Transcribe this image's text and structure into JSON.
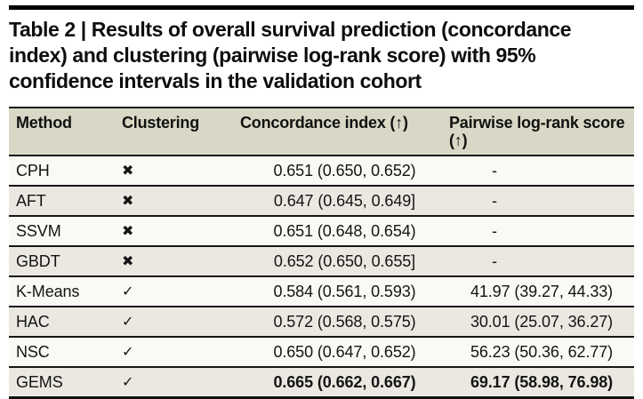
{
  "title": {
    "line1": "Table 2 | Results of overall survival prediction (concordance",
    "line2": "index) and clustering (pairwise log-rank score) with 95%",
    "line3": "confidence intervals in the validation cohort"
  },
  "table": {
    "columns": [
      {
        "label": "Method"
      },
      {
        "label": "Clustering"
      },
      {
        "label": "Concordance index (↑)"
      },
      {
        "label": "Pairwise log-rank score (↑)"
      }
    ],
    "icons": {
      "clustering_no": "✖",
      "clustering_yes": "✓"
    },
    "rows": [
      {
        "method": "CPH",
        "clustering_mark": "✖",
        "concordance": "0.651 (0.650, 0.652)",
        "logrank": "-"
      },
      {
        "method": "AFT",
        "clustering_mark": "✖",
        "concordance": "0.647 (0.645, 0.649]",
        "logrank": "-"
      },
      {
        "method": "SSVM",
        "clustering_mark": "✖",
        "concordance": "0.651 (0.648, 0.654)",
        "logrank": "-"
      },
      {
        "method": "GBDT",
        "clustering_mark": "✖",
        "concordance": "0.652 (0.650, 0.655]",
        "logrank": "-"
      },
      {
        "method": "K-Means",
        "clustering_mark": "✓",
        "concordance": "0.584 (0.561, 0.593)",
        "logrank": "41.97 (39.27, 44.33)"
      },
      {
        "method": "HAC",
        "clustering_mark": "✓",
        "concordance": "0.572 (0.568, 0.575)",
        "logrank": "30.01 (25.07, 36.27)"
      },
      {
        "method": "NSC",
        "clustering_mark": "✓",
        "concordance": "0.650 (0.647, 0.652)",
        "logrank": "56.23 (50.36, 62.77)"
      },
      {
        "method": "GEMS",
        "clustering_mark": "✓",
        "concordance": "0.665 (0.662, 0.667)",
        "logrank": "69.17 (58.98, 76.98)"
      }
    ]
  },
  "colors": {
    "header_bg": "#d9d8c6",
    "row_odd_bg": "#faf9f5",
    "row_even_bg": "#eae8e1",
    "rule": "#161616",
    "top_bar": "#000000"
  },
  "chart_data": {
    "type": "table",
    "title": "Table 2 | Results of overall survival prediction (concordance index) and clustering (pairwise log-rank score) with 95% confidence intervals in the validation cohort",
    "columns": [
      "Method",
      "Clustering",
      "Concordance index (↑)",
      "Pairwise log-rank score (↑)"
    ],
    "rows": [
      [
        "CPH",
        "no",
        "0.651 (0.650, 0.652)",
        "-"
      ],
      [
        "AFT",
        "no",
        "0.647 (0.645, 0.649]",
        "-"
      ],
      [
        "SSVM",
        "no",
        "0.651 (0.648, 0.654)",
        "-"
      ],
      [
        "GBDT",
        "no",
        "0.652 (0.650, 0.655]",
        "-"
      ],
      [
        "K-Means",
        "yes",
        "0.584 (0.561, 0.593)",
        "41.97 (39.27, 44.33)"
      ],
      [
        "HAC",
        "yes",
        "0.572 (0.568, 0.575)",
        "30.01 (25.07, 36.27)"
      ],
      [
        "NSC",
        "yes",
        "0.650 (0.647, 0.652)",
        "56.23 (50.36, 62.77)"
      ],
      [
        "GEMS",
        "yes",
        "0.665 (0.662, 0.667)",
        "69.17 (58.98, 76.98)"
      ]
    ],
    "notes": "GEMS row concordance and log-rank values are bold; arrows (↑) mean higher is better"
  }
}
